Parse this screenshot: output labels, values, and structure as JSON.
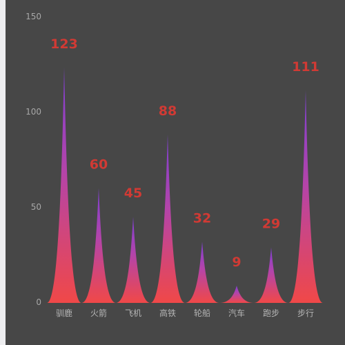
{
  "chart_data": {
    "type": "bar",
    "categories": [
      "驯鹿",
      "火箭",
      "飞机",
      "高铁",
      "轮船",
      "汽车",
      "跑步",
      "步行"
    ],
    "values": [
      123,
      60,
      45,
      88,
      32,
      9,
      29,
      111
    ],
    "data_labels": [
      "123",
      "60",
      "45",
      "88",
      "32",
      "9",
      "29",
      "111"
    ],
    "yticks": [
      "0",
      "50",
      "100",
      "150"
    ],
    "ylim": [
      0,
      150
    ],
    "grid": false,
    "bar_style": "pictorial spike",
    "colors": {
      "background": "#474747",
      "gradient_top": "#7e3fd6",
      "gradient_bottom": "#f04848",
      "label": "#d13a34",
      "axis_text": "#a8a8a8"
    }
  }
}
